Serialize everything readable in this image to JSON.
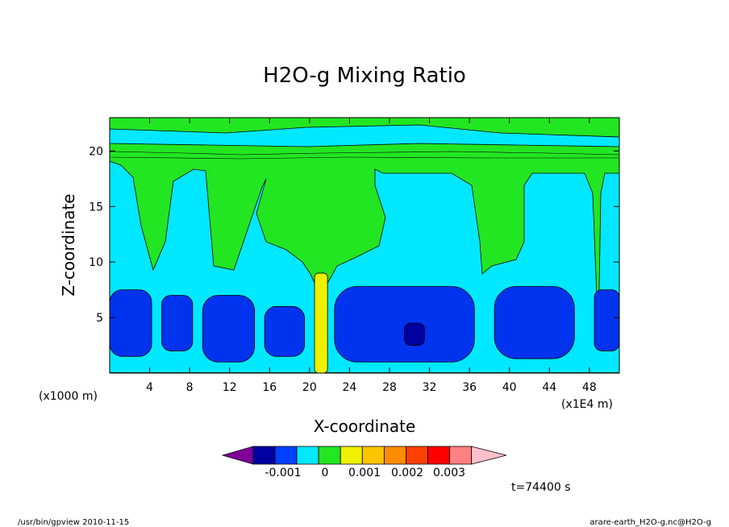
{
  "chart_data": {
    "type": "heatmap",
    "title": "H2O-g Mixing Ratio",
    "xlabel": "X-coordinate",
    "ylabel": "Z-coordinate",
    "x_units": "(x1E4 m)",
    "y_units": "(x1000 m)",
    "xlim": [
      0,
      51
    ],
    "ylim": [
      0,
      23
    ],
    "x_ticks": [
      4,
      8,
      12,
      16,
      20,
      24,
      28,
      32,
      36,
      40,
      44,
      48
    ],
    "y_ticks": [
      5,
      10,
      15,
      20
    ],
    "time_label": "t=74400 s",
    "colorbar": {
      "tick_labels": [
        "-0.001",
        "0",
        "0.001",
        "0.002",
        "0.003"
      ],
      "colors": [
        "#7e0099",
        "#0000a0",
        "#0040ff",
        "#00e8ff",
        "#22e622",
        "#f0f000",
        "#ffc400",
        "#ff8c00",
        "#ff4000",
        "#ff0000",
        "#ff8080",
        "#ffc0cc"
      ]
    },
    "regions": [
      {
        "level": "-0.001 to 0",
        "color": "#0033ee",
        "x_range": [
          0,
          4.2
        ],
        "z_range": [
          1.5,
          7.5
        ]
      },
      {
        "level": "-0.001 to 0",
        "color": "#0033ee",
        "x_range": [
          5.2,
          8.3
        ],
        "z_range": [
          2.0,
          7.0
        ]
      },
      {
        "level": "-0.001 to 0",
        "color": "#0033ee",
        "x_range": [
          9.3,
          14.5
        ],
        "z_range": [
          1.0,
          7.0
        ]
      },
      {
        "level": "-0.001 to 0",
        "color": "#0033ee",
        "x_range": [
          15.5,
          19.5
        ],
        "z_range": [
          1.5,
          6.0
        ]
      },
      {
        "level": "-0.001 to 0",
        "color": "#0033ee",
        "x_range": [
          22.5,
          36.5
        ],
        "z_range": [
          1.0,
          7.8
        ]
      },
      {
        "level": "-0.001 to 0",
        "color": "#0033ee",
        "x_range": [
          38.5,
          46.5
        ],
        "z_range": [
          1.3,
          7.8
        ]
      },
      {
        "level": "-0.001 to 0",
        "color": "#0033ee",
        "x_range": [
          48.5,
          51
        ],
        "z_range": [
          2.0,
          7.5
        ]
      },
      {
        "level": "< -0.001",
        "color": "#0000a0",
        "x_range": [
          29.5,
          31.5
        ],
        "z_range": [
          2.5,
          4.5
        ]
      },
      {
        "level": "> 0.001",
        "color": "#f0f000",
        "x_range": [
          20.5,
          21.8
        ],
        "z_range": [
          0,
          9.0
        ]
      }
    ]
  },
  "footer": {
    "left": "/usr/bin/gpview   2010-11-15",
    "right": "arare-earth_H2O-g.nc@H2O-g"
  }
}
